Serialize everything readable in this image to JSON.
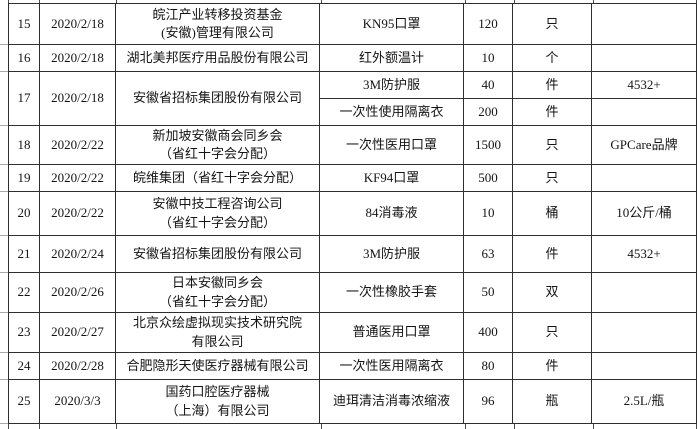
{
  "table": {
    "rows": [
      {
        "no": "15",
        "date": "2020/2/18",
        "org": "皖江产业转移投资基金\n(安徽)管理有限公司",
        "item": "KN95口罩",
        "qty": "120",
        "unit": "只",
        "note": ""
      },
      {
        "no": "16",
        "date": "2020/2/18",
        "org": "湖北美邦医疗用品股份有限公司",
        "item": "红外额温计",
        "qty": "10",
        "unit": "个",
        "note": ""
      },
      {
        "no": "17",
        "date": "2020/2/18",
        "org": "安徽省招标集团股份有限公司",
        "item": "3M防护服",
        "qty": "40",
        "unit": "件",
        "note": "4532+"
      },
      {
        "item": "一次性使用隔离衣",
        "qty": "200",
        "unit": "件",
        "note": ""
      },
      {
        "no": "18",
        "date": "2020/2/22",
        "org": "新加坡安徽商会同乡会\n（省红十字会分配）",
        "item": "一次性医用口罩",
        "qty": "1500",
        "unit": "只",
        "note": "GPCare品牌"
      },
      {
        "no": "19",
        "date": "2020/2/22",
        "org": "皖维集团（省红十字会分配）",
        "item": "KF94口罩",
        "qty": "500",
        "unit": "只",
        "note": ""
      },
      {
        "no": "20",
        "date": "2020/2/22",
        "org": "安徽中技工程咨询公司\n（省红十字会分配）",
        "item": "84消毒液",
        "qty": "10",
        "unit": "桶",
        "note": "10公斤/桶"
      },
      {
        "no": "21",
        "date": "2020/2/24",
        "org": "安徽省招标集团股份有限公司",
        "item": "3M防护服",
        "qty": "63",
        "unit": "件",
        "note": "4532+"
      },
      {
        "no": "22",
        "date": "2020/2/26",
        "org": "日本安徽同乡会\n（省红十字会分配）",
        "item": "一次性橡胶手套",
        "qty": "50",
        "unit": "双",
        "note": ""
      },
      {
        "no": "23",
        "date": "2020/2/27",
        "org": "北京众绘虚拟现实技术研究院\n有限公司",
        "item": "普通医用口罩",
        "qty": "400",
        "unit": "只",
        "note": ""
      },
      {
        "no": "24",
        "date": "2020/2/28",
        "org": "合肥隐形天使医疗器械有限公司",
        "item": "一次性医用隔离衣",
        "qty": "80",
        "unit": "件",
        "note": ""
      },
      {
        "no": "25",
        "date": "2020/3/3",
        "org": "国药口腔医疗器械\n（上海）有限公司",
        "item": "迪珥清洁消毒浓缩液",
        "qty": "96",
        "unit": "瓶",
        "note": "2.5L/瓶"
      }
    ]
  }
}
